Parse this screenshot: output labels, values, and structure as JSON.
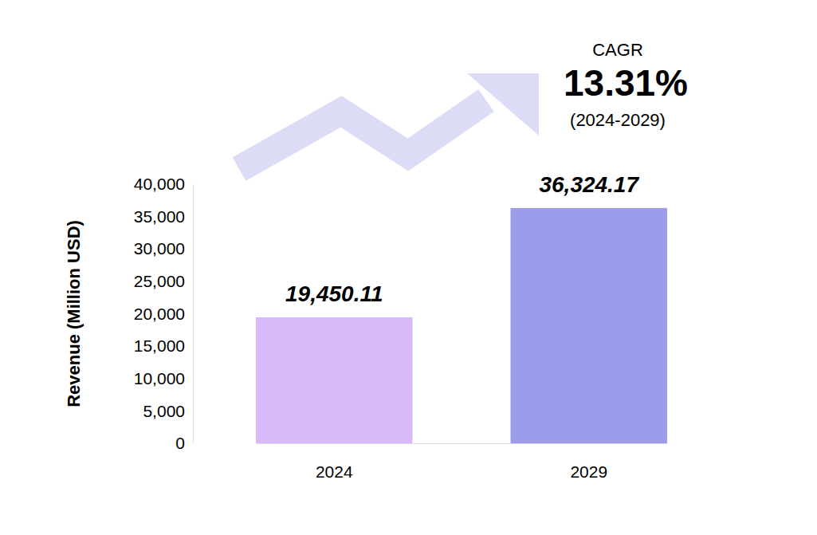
{
  "chart_data": {
    "type": "bar",
    "y_label": "Revenue (Million USD)",
    "categories": [
      "2024",
      "2029"
    ],
    "values": [
      19450.11,
      36324.17
    ],
    "value_labels": [
      "19,450.11",
      "36,324.17"
    ],
    "colors": [
      "#d8b9fa",
      "#9c9ced"
    ],
    "ylim": [
      0,
      40000
    ],
    "yticks": [
      0,
      {
        "value": 5000,
        "label": "5,000"
      },
      {
        "value": 10000,
        "label": "10,000"
      },
      {
        "value": 15000,
        "label": "15,000"
      },
      {
        "value": 20000,
        "label": "20,000"
      },
      {
        "value": 25000,
        "label": "25,000"
      },
      {
        "value": 30000,
        "label": "30,000"
      },
      {
        "value": 35000,
        "label": "35,000"
      },
      {
        "value": 40000,
        "label": "40,000"
      }
    ],
    "grid": false,
    "data_labels": true,
    "annotations": [
      "CAGR",
      "13.31%",
      "(2024-2029)"
    ]
  }
}
